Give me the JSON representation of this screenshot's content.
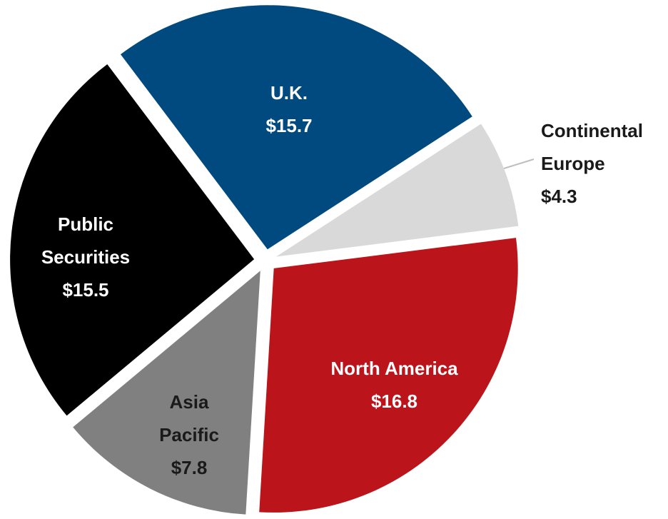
{
  "chart_data": {
    "type": "pie",
    "categories": [
      "U.K.",
      "Continental Europe",
      "North America",
      "Asia Pacific",
      "Public Securities"
    ],
    "values": [
      15.7,
      4.3,
      16.8,
      7.8,
      15.5
    ],
    "value_labels": [
      "$15.7",
      "$4.3",
      "$16.8",
      "$7.8",
      "$15.5"
    ],
    "colors": [
      "#004a80",
      "#d9d9d9",
      "#bb141a",
      "#808080",
      "#000000"
    ],
    "exploded": true
  }
}
